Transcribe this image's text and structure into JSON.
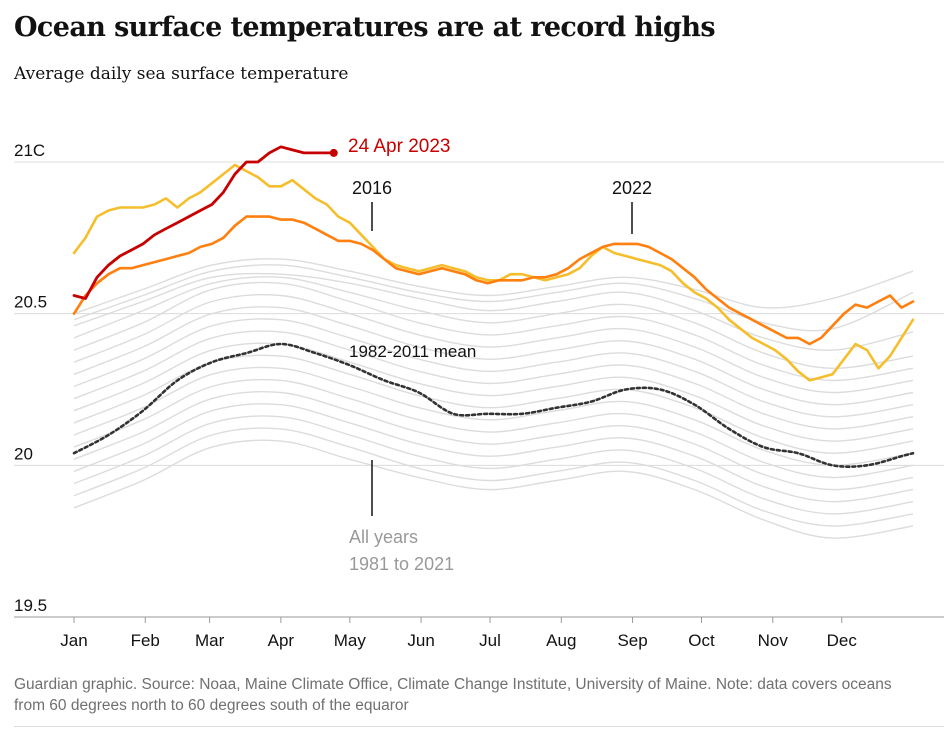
{
  "header": {
    "title": "Ocean surface temperatures are at record highs",
    "subtitle": "Average daily sea surface temperature"
  },
  "footer": {
    "source_note": "Guardian graphic. Source: Noaa, Maine Climate Office, Climate Change Institute, University of Maine. Note: data covers oceans from 60 degrees north to 60 degrees south of the equaror"
  },
  "colors": {
    "y2023": "#c70000",
    "y2016": "#f5be2c",
    "y2022": "#ff7f0f",
    "mean": "#333333",
    "all_years": "#dcdcdc",
    "axis": "#bababa",
    "text_dark": "#121212",
    "text_muted": "#707070"
  },
  "chart_data": {
    "type": "line",
    "ylim": [
      19.5,
      21.0
    ],
    "y_ticks": [
      {
        "value": 21.0,
        "label": "21C"
      },
      {
        "value": 20.5,
        "label": "20.5"
      },
      {
        "value": 20.0,
        "label": "20"
      },
      {
        "value": 19.5,
        "label": "19.5"
      }
    ],
    "x_ticks": [
      "Jan",
      "Feb",
      "Mar",
      "Apr",
      "May",
      "Jun",
      "Jul",
      "Aug",
      "Sep",
      "Oct",
      "Nov",
      "Dec"
    ],
    "grid": true,
    "series": [
      {
        "name": "24 Apr 2023",
        "key": "y2023",
        "x": [
          1,
          6,
          11,
          16,
          21,
          26,
          31,
          36,
          41,
          46,
          51,
          56,
          61,
          66,
          71,
          76,
          81,
          86,
          91,
          96,
          101,
          106,
          111,
          114
        ],
        "y": [
          20.56,
          20.55,
          20.62,
          20.66,
          20.69,
          20.71,
          20.73,
          20.76,
          20.78,
          20.8,
          20.82,
          20.84,
          20.86,
          20.9,
          20.96,
          21.0,
          21.0,
          21.03,
          21.05,
          21.04,
          21.03,
          21.03,
          21.03,
          21.03
        ]
      },
      {
        "name": "2016",
        "key": "y2016",
        "x": [
          1,
          6,
          11,
          16,
          21,
          26,
          31,
          36,
          41,
          46,
          51,
          56,
          61,
          66,
          71,
          76,
          81,
          86,
          91,
          96,
          101,
          106,
          111,
          116,
          121,
          126,
          131,
          136,
          141,
          146,
          151,
          156,
          161,
          166,
          171,
          176,
          181,
          186,
          191,
          196,
          201,
          206,
          211,
          216,
          221,
          226,
          231,
          236,
          241,
          246,
          251,
          256,
          261,
          266,
          271,
          276,
          281,
          286,
          291,
          296,
          301,
          306,
          311,
          316,
          321,
          326,
          331,
          336,
          341,
          346,
          351,
          356,
          361,
          366
        ],
        "y": [
          20.7,
          20.75,
          20.82,
          20.84,
          20.85,
          20.85,
          20.85,
          20.86,
          20.88,
          20.85,
          20.88,
          20.9,
          20.93,
          20.96,
          20.99,
          20.97,
          20.95,
          20.92,
          20.92,
          20.94,
          20.91,
          20.88,
          20.86,
          20.82,
          20.8,
          20.76,
          20.72,
          20.68,
          20.66,
          20.65,
          20.64,
          20.65,
          20.66,
          20.65,
          20.64,
          20.62,
          20.61,
          20.61,
          20.63,
          20.63,
          20.62,
          20.61,
          20.62,
          20.63,
          20.65,
          20.69,
          20.72,
          20.7,
          20.69,
          20.68,
          20.67,
          20.66,
          20.64,
          20.6,
          20.57,
          20.55,
          20.52,
          20.48,
          20.45,
          20.42,
          20.4,
          20.38,
          20.35,
          20.31,
          20.28,
          20.29,
          20.3,
          20.35,
          20.4,
          20.38,
          20.32,
          20.36,
          20.42,
          20.48
        ]
      },
      {
        "name": "2022",
        "key": "y2022",
        "x": [
          1,
          6,
          11,
          16,
          21,
          26,
          31,
          36,
          41,
          46,
          51,
          56,
          61,
          66,
          71,
          76,
          81,
          86,
          91,
          96,
          101,
          106,
          111,
          116,
          121,
          126,
          131,
          136,
          141,
          146,
          151,
          156,
          161,
          166,
          171,
          176,
          181,
          186,
          191,
          196,
          201,
          206,
          211,
          216,
          221,
          226,
          231,
          236,
          241,
          246,
          251,
          256,
          261,
          266,
          271,
          276,
          281,
          286,
          291,
          296,
          301,
          306,
          311,
          316,
          321,
          326,
          331,
          336,
          341,
          346,
          351,
          356,
          361,
          366
        ],
        "y": [
          20.5,
          20.56,
          20.6,
          20.63,
          20.65,
          20.65,
          20.66,
          20.67,
          20.68,
          20.69,
          20.7,
          20.72,
          20.73,
          20.75,
          20.79,
          20.82,
          20.82,
          20.82,
          20.81,
          20.81,
          20.8,
          20.78,
          20.76,
          20.74,
          20.74,
          20.73,
          20.71,
          20.68,
          20.65,
          20.64,
          20.63,
          20.64,
          20.65,
          20.64,
          20.63,
          20.61,
          20.6,
          20.61,
          20.61,
          20.61,
          20.62,
          20.62,
          20.63,
          20.65,
          20.68,
          20.7,
          20.72,
          20.73,
          20.73,
          20.73,
          20.72,
          20.7,
          20.68,
          20.65,
          20.62,
          20.58,
          20.55,
          20.52,
          20.5,
          20.48,
          20.46,
          20.44,
          20.42,
          20.42,
          20.4,
          20.42,
          20.46,
          20.5,
          20.53,
          20.52,
          20.54,
          20.56,
          20.52,
          20.54
        ]
      },
      {
        "name": "1982-2011 mean",
        "key": "mean",
        "x": [
          1,
          16,
          31,
          46,
          61,
          76,
          91,
          106,
          121,
          136,
          151,
          166,
          181,
          196,
          211,
          226,
          241,
          256,
          271,
          286,
          301,
          316,
          331,
          346,
          361,
          366
        ],
        "y": [
          20.04,
          20.1,
          20.18,
          20.28,
          20.34,
          20.37,
          20.4,
          20.37,
          20.33,
          20.28,
          20.24,
          20.17,
          20.17,
          20.17,
          20.19,
          20.21,
          20.25,
          20.25,
          20.2,
          20.12,
          20.06,
          20.04,
          20.0,
          20.0,
          20.03,
          20.04
        ]
      }
    ],
    "background_series": {
      "name": "All years 1981 to 2021",
      "x": [
        1,
        31,
        61,
        91,
        121,
        151,
        181,
        211,
        241,
        271,
        301,
        331,
        366
      ],
      "rows": [
        [
          19.86,
          19.95,
          20.06,
          20.08,
          20.02,
          19.96,
          19.92,
          19.95,
          19.98,
          19.92,
          19.82,
          19.76,
          19.8
        ],
        [
          19.9,
          19.99,
          20.1,
          20.12,
          20.06,
          19.99,
          19.95,
          19.98,
          20.01,
          19.95,
          19.85,
          19.8,
          19.84
        ],
        [
          19.94,
          20.03,
          20.14,
          20.16,
          20.1,
          20.03,
          19.99,
          20.02,
          20.05,
          19.99,
          19.89,
          19.84,
          19.88
        ],
        [
          19.98,
          20.07,
          20.18,
          20.2,
          20.14,
          20.07,
          20.03,
          20.06,
          20.09,
          20.03,
          19.93,
          19.88,
          19.92
        ],
        [
          20.02,
          20.11,
          20.22,
          20.24,
          20.18,
          20.11,
          20.07,
          20.1,
          20.13,
          20.07,
          19.97,
          19.92,
          19.96
        ],
        [
          20.06,
          20.15,
          20.26,
          20.28,
          20.22,
          20.15,
          20.11,
          20.14,
          20.17,
          20.11,
          20.01,
          19.96,
          20.0
        ],
        [
          20.1,
          20.19,
          20.3,
          20.32,
          20.26,
          20.19,
          20.15,
          20.18,
          20.21,
          20.15,
          20.05,
          20.0,
          20.04
        ],
        [
          20.14,
          20.23,
          20.34,
          20.36,
          20.3,
          20.23,
          20.19,
          20.22,
          20.25,
          20.19,
          20.09,
          20.04,
          20.08
        ],
        [
          20.18,
          20.27,
          20.38,
          20.4,
          20.34,
          20.27,
          20.23,
          20.26,
          20.29,
          20.23,
          20.13,
          20.08,
          20.12
        ],
        [
          20.22,
          20.31,
          20.42,
          20.44,
          20.38,
          20.31,
          20.27,
          20.3,
          20.33,
          20.27,
          20.17,
          20.12,
          20.16
        ],
        [
          20.26,
          20.35,
          20.46,
          20.48,
          20.42,
          20.35,
          20.31,
          20.34,
          20.37,
          20.31,
          20.21,
          20.16,
          20.2
        ],
        [
          20.3,
          20.39,
          20.5,
          20.52,
          20.46,
          20.39,
          20.35,
          20.38,
          20.41,
          20.35,
          20.25,
          20.2,
          20.24
        ],
        [
          20.34,
          20.43,
          20.54,
          20.56,
          20.5,
          20.43,
          20.39,
          20.42,
          20.45,
          20.39,
          20.29,
          20.24,
          20.28
        ],
        [
          20.38,
          20.47,
          20.58,
          20.6,
          20.54,
          20.47,
          20.43,
          20.46,
          20.49,
          20.43,
          20.33,
          20.28,
          20.32
        ],
        [
          20.42,
          20.51,
          20.6,
          20.62,
          20.57,
          20.51,
          20.47,
          20.5,
          20.53,
          20.47,
          20.37,
          20.32,
          20.36
        ],
        [
          20.46,
          20.54,
          20.62,
          20.63,
          20.6,
          20.55,
          20.51,
          20.54,
          20.57,
          20.51,
          20.42,
          20.38,
          20.44
        ],
        [
          20.48,
          20.56,
          20.64,
          20.66,
          20.62,
          20.57,
          20.54,
          20.57,
          20.6,
          20.55,
          20.47,
          20.45,
          20.57
        ],
        [
          20.5,
          20.58,
          20.66,
          20.68,
          20.64,
          20.59,
          20.56,
          20.59,
          20.62,
          20.58,
          20.52,
          20.55,
          20.64
        ]
      ]
    },
    "annotations": [
      {
        "label": "24 Apr 2023",
        "key": "y2023"
      },
      {
        "label": "2016",
        "key": "y2016"
      },
      {
        "label": "2022",
        "key": "y2022"
      },
      {
        "label": "1982-2011 mean",
        "key": "mean"
      },
      {
        "label": "All years",
        "key": "all_years_1"
      },
      {
        "label": "1981 to 2021",
        "key": "all_years_2"
      }
    ]
  }
}
